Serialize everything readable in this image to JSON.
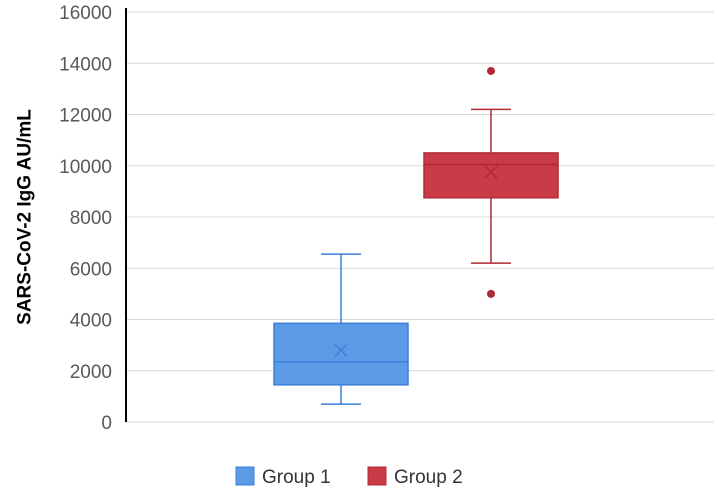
{
  "chart_data": {
    "type": "box",
    "ylabel": "SARS-CoV-2 IgG AU/mL",
    "xlabel": "",
    "title": "",
    "ylim": [
      0,
      16000
    ],
    "yticks": [
      0,
      2000,
      4000,
      6000,
      8000,
      10000,
      12000,
      14000,
      16000
    ],
    "grid": true,
    "legend_position": "bottom",
    "series": [
      {
        "name": "Group 1",
        "color": "#5B9BE6",
        "edge_color": "#3C7FD8",
        "min": 700,
        "q1": 1450,
        "median": 2350,
        "mean": 2800,
        "q3": 3850,
        "max": 6550,
        "outliers": []
      },
      {
        "name": "Group 2",
        "color": "#C93B47",
        "edge_color": "#B02A35",
        "min": 6200,
        "q1": 8750,
        "median": 10050,
        "mean": 9750,
        "q3": 10500,
        "max": 12200,
        "outliers": [
          13700,
          5000
        ]
      }
    ]
  }
}
